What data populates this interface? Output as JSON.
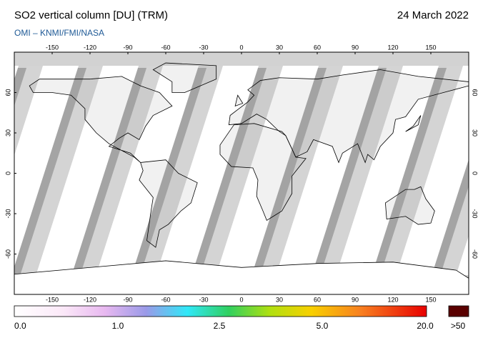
{
  "header": {
    "title": "SO2 vertical column [DU] (TRM)",
    "date": "24 March 2022",
    "source": "OMI  –  KNMI/FMI/NASA"
  },
  "map": {
    "lon_ticks": [
      -150,
      -120,
      -90,
      -60,
      -30,
      0,
      30,
      60,
      90,
      120,
      150
    ],
    "lat_ticks": [
      -60,
      -30,
      0,
      30,
      60
    ]
  },
  "colorbar": {
    "labels": [
      "0.0",
      "1.0",
      "2.5",
      "5.0",
      "20.0",
      ">50"
    ]
  }
}
